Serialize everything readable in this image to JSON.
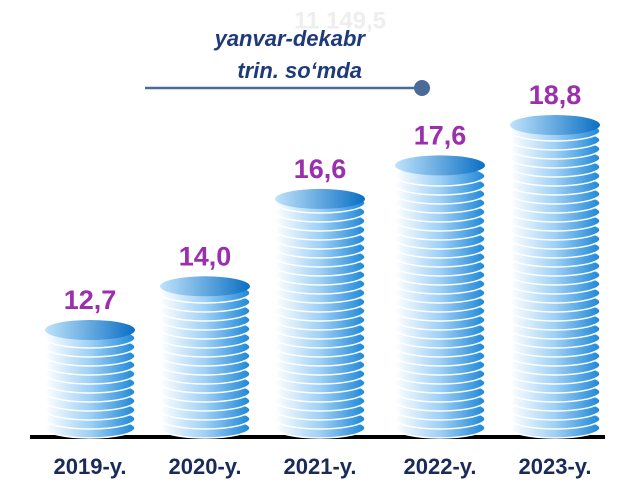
{
  "chart_data": {
    "type": "coin-stack",
    "title": "yanvar-dekabr",
    "subtitle": "trin. so‘mda",
    "annotation": "11 149,5",
    "categories": [
      "2019-y.",
      "2020-y.",
      "2021-y.",
      "2022-y.",
      "2023-y."
    ],
    "values": [
      12.7,
      14.0,
      16.6,
      17.6,
      18.8
    ],
    "value_labels": [
      "12,7",
      "14,0",
      "16,6",
      "17,6",
      "18,8"
    ],
    "color": "#1e88d8",
    "label_color": "#9b2fae"
  }
}
